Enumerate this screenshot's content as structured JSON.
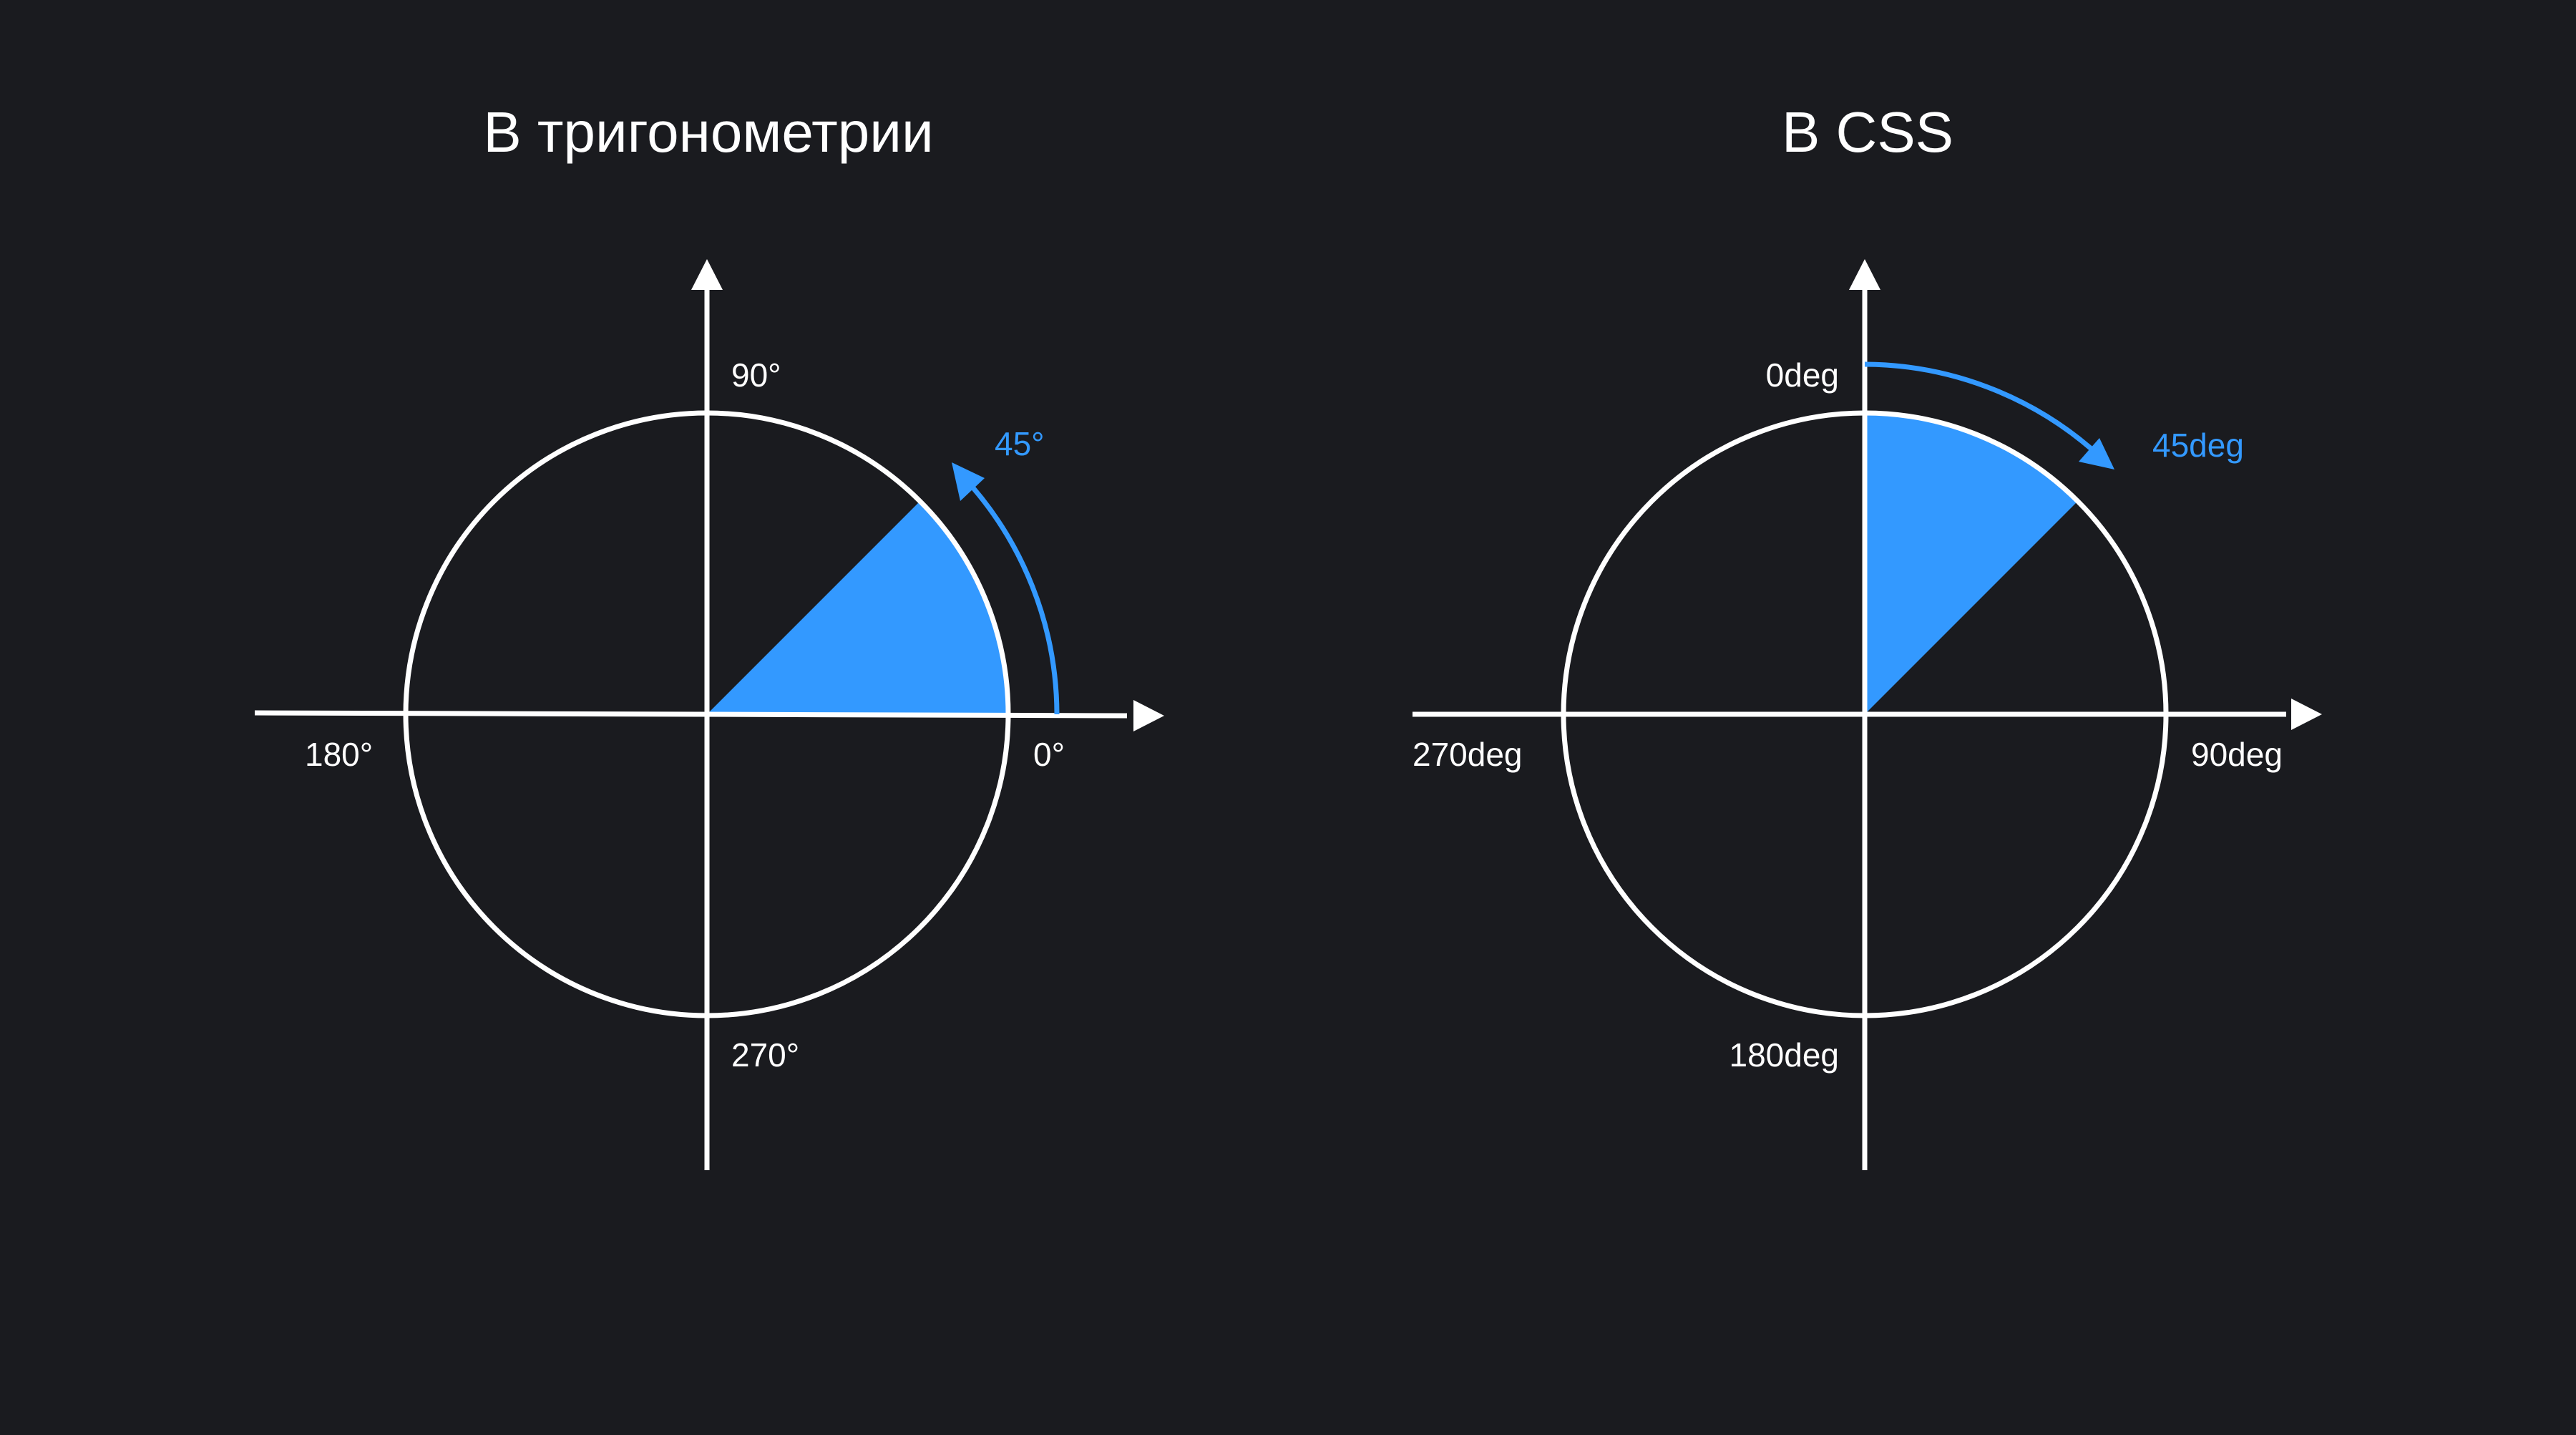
{
  "colors": {
    "background": "#1a1b1f",
    "foreground": "#ffffff",
    "accent": "#3399ff"
  },
  "left_panel": {
    "title": "В тригонометрии",
    "angle_label": "45°",
    "axis_labels": {
      "right": "0°",
      "top": "90°",
      "left": "180°",
      "bottom": "270°"
    },
    "sector_degrees": 45,
    "direction": "counterclockwise from right"
  },
  "right_panel": {
    "title": "В CSS",
    "angle_label": "45deg",
    "axis_labels": {
      "top": "0deg",
      "right": "90deg",
      "bottom": "180deg",
      "left": "270deg"
    },
    "sector_degrees": 45,
    "direction": "clockwise from top"
  }
}
